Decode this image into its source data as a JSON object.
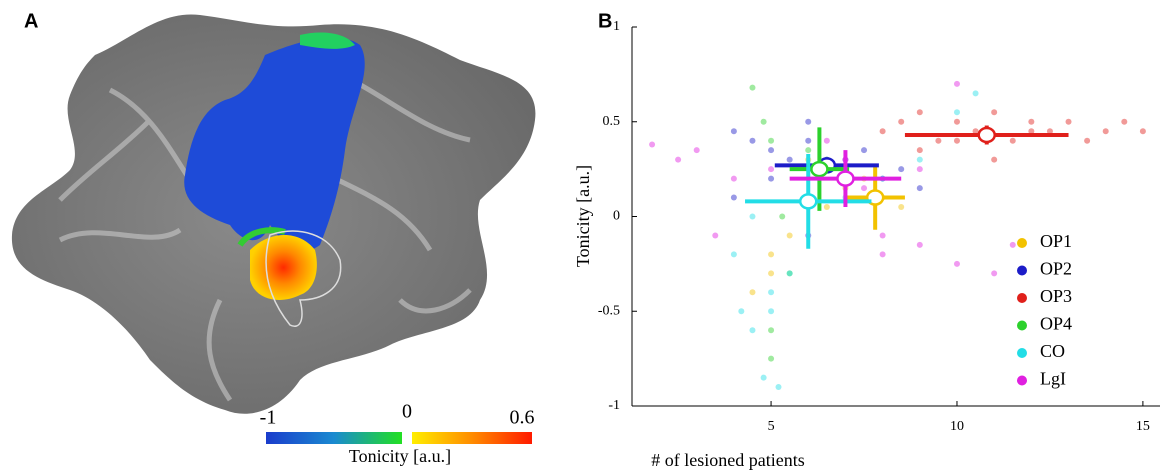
{
  "panel_a": {
    "label": "A",
    "colorbar": {
      "label": "Tonicity [a.u.]",
      "ticks": [
        -1,
        0,
        0.6
      ]
    }
  },
  "chart_data": {
    "type": "scatter",
    "panel_label": "B",
    "x_label": "# of lesioned patients",
    "y_label": "Tonicity [a.u.]",
    "xlim": [
      1.26,
      15.46
    ],
    "ylim": [
      -1,
      1
    ],
    "xticks": [
      5,
      10,
      15
    ],
    "yticks": [
      -1,
      -0.5,
      0,
      0.5,
      1
    ],
    "legend": "lower right",
    "series": [
      {
        "name": "OP1",
        "color": "#f2c200",
        "x": [
          4.5,
          5,
          5.5,
          6,
          6.5,
          7,
          7.5,
          8,
          8.5,
          5,
          6,
          7
        ],
        "values": [
          -0.4,
          -0.3,
          -0.1,
          0.1,
          0.05,
          0.15,
          0.2,
          0.1,
          0.05,
          -0.2,
          0.3,
          0.25
        ],
        "mean_x": 7.8,
        "mean_y": 0.1,
        "xerr": 0.8,
        "yerr": 0.17
      },
      {
        "name": "OP2",
        "color": "#1c1cc8",
        "x": [
          4,
          4.5,
          5,
          5.5,
          6,
          6.5,
          7,
          7.5,
          8,
          4,
          5,
          6,
          7,
          8.5,
          9
        ],
        "values": [
          0.45,
          0.4,
          0.35,
          0.3,
          0.5,
          0.3,
          0.25,
          0.35,
          0.2,
          0.1,
          0.2,
          0.4,
          0.3,
          0.25,
          0.15
        ],
        "mean_x": 6.5,
        "mean_y": 0.27,
        "xerr": 1.4,
        "yerr": 0.03
      },
      {
        "name": "OP3",
        "color": "#e0201b",
        "x": [
          8,
          8.5,
          9,
          9.5,
          10,
          10.5,
          11,
          11.5,
          12,
          12.5,
          13,
          13.5,
          14,
          14.5,
          15,
          9,
          10,
          11,
          12
        ],
        "values": [
          0.45,
          0.5,
          0.55,
          0.4,
          0.5,
          0.45,
          0.55,
          0.4,
          0.5,
          0.45,
          0.5,
          0.4,
          0.45,
          0.5,
          0.45,
          0.35,
          0.4,
          0.3,
          0.45
        ],
        "mean_x": 10.8,
        "mean_y": 0.43,
        "xerr": 2.2,
        "yerr": 0.05
      },
      {
        "name": "OP4",
        "color": "#2cd12c",
        "x": [
          4.5,
          5,
          5,
          5.5,
          6,
          6.5,
          7,
          5,
          4.8,
          5.3,
          6
        ],
        "values": [
          0.68,
          0.4,
          -0.6,
          -0.3,
          0.1,
          0.3,
          0.2,
          -0.75,
          0.5,
          0,
          0.35
        ],
        "mean_x": 6.3,
        "mean_y": 0.25,
        "xerr": 0.8,
        "yerr": 0.22
      },
      {
        "name": "CO",
        "color": "#22dde6",
        "x": [
          4,
          4.2,
          4.5,
          4.8,
          5,
          5.2,
          5.5,
          6,
          7,
          8,
          9,
          10,
          10.5,
          4.5,
          5
        ],
        "values": [
          -0.2,
          -0.5,
          -0.6,
          -0.85,
          -0.4,
          -0.9,
          -0.3,
          -0.1,
          0.1,
          0.2,
          0.3,
          0.55,
          0.65,
          0,
          -0.5
        ],
        "mean_x": 6,
        "mean_y": 0.08,
        "xerr": 1.7,
        "yerr": 0.25
      },
      {
        "name": "LgI",
        "color": "#e020e0",
        "x": [
          1.8,
          2.5,
          3,
          3.5,
          4,
          5,
          6,
          7,
          8,
          9,
          10,
          11,
          11.5,
          10,
          9,
          8,
          7.5,
          6.5
        ],
        "values": [
          0.38,
          0.3,
          0.35,
          -0.1,
          0.2,
          0.25,
          -0.1,
          0.3,
          -0.2,
          -0.15,
          -0.25,
          -0.3,
          -0.15,
          0.7,
          0.25,
          -0.1,
          0.15,
          0.4
        ],
        "mean_x": 7,
        "mean_y": 0.2,
        "xerr": 1.5,
        "yerr": 0.15
      }
    ]
  }
}
